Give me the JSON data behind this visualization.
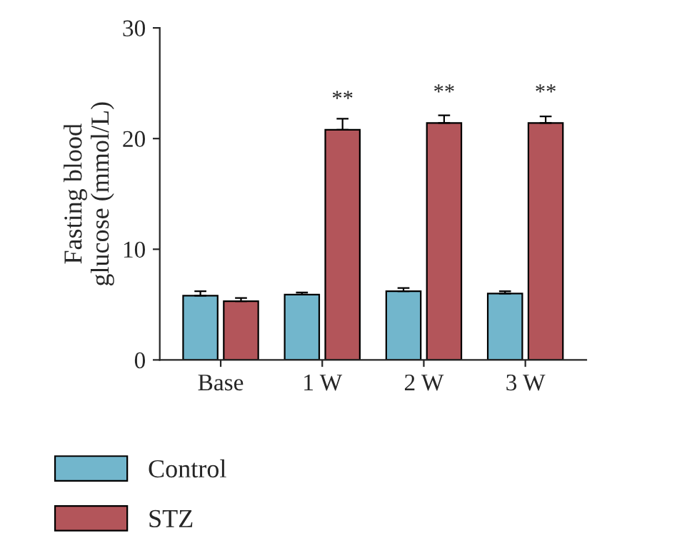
{
  "chart_data": {
    "type": "bar",
    "ylabel": "Fasting blood\nglucose (mmol/L)",
    "categories": [
      "Base",
      "1 W",
      "2 W",
      "3 W"
    ],
    "series": [
      {
        "name": "Control",
        "color": "#72b6cc",
        "values": [
          5.8,
          5.9,
          6.2,
          6.0
        ],
        "errors": [
          0.4,
          0.2,
          0.3,
          0.2
        ]
      },
      {
        "name": "STZ",
        "color": "#b3555a",
        "values": [
          5.3,
          20.8,
          21.4,
          21.4
        ],
        "errors": [
          0.3,
          1.0,
          0.7,
          0.6
        ]
      }
    ],
    "ylim": [
      0,
      30
    ],
    "yticks": [
      0,
      10,
      20,
      30
    ],
    "grid": false,
    "legend": "bottom left",
    "annotations": [
      {
        "text": "**",
        "x": "1 W",
        "y": 20.8
      },
      {
        "text": "**",
        "x": "2 W",
        "y": 21.4
      },
      {
        "text": "**",
        "x": "3 W",
        "y": 21.4
      }
    ]
  }
}
